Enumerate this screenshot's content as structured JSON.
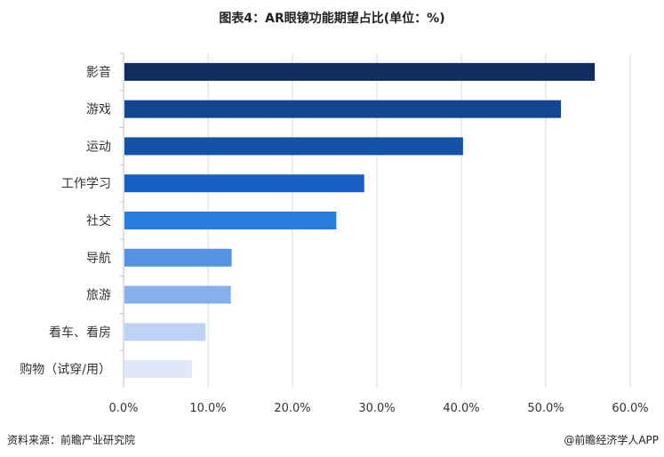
{
  "chart_data": {
    "type": "bar",
    "orientation": "horizontal",
    "title": "图表4：AR眼镜功能期望占比(单位：%)",
    "categories": [
      "影音",
      "游戏",
      "运动",
      "工作学习",
      "社交",
      "导航",
      "旅游",
      "看车、看房",
      "购物（试穿/用）"
    ],
    "values": [
      55.8,
      51.8,
      40.2,
      28.5,
      25.2,
      12.8,
      12.7,
      9.7,
      8.1
    ],
    "colors": [
      "#0f2d5e",
      "#13468f",
      "#1452a8",
      "#175fc4",
      "#2b7ce0",
      "#5592e4",
      "#86b0eb",
      "#bcd3f4",
      "#dfe8f8"
    ],
    "xlim": [
      0,
      60
    ],
    "xticks": [
      "0.0%",
      "10.0%",
      "20.0%",
      "30.0%",
      "40.0%",
      "50.0%",
      "60.0%"
    ],
    "xtick_values": [
      0,
      10,
      20,
      30,
      40,
      50,
      60
    ],
    "grid": true,
    "xlabel": "",
    "ylabel": ""
  },
  "footer": {
    "source": "资料来源：前瞻产业研究院",
    "credit": "@前瞻经济学人APP"
  },
  "watermark": "前瞻产业研究院"
}
